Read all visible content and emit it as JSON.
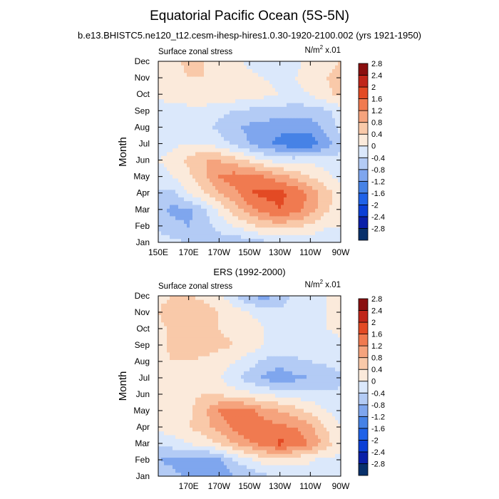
{
  "title": "Equatorial Pacific Ocean (5S-5N)",
  "subtitle": "b.e13.BHISTC5.ne120_t12.cesm-ihesp-hires1.0.30-1920-2100.002 (yrs 1921-1950)",
  "colors": [
    "#08306b",
    "#0a1fa8",
    "#0b3fd6",
    "#1f62e8",
    "#4682e6",
    "#7fa6ee",
    "#b3cbf5",
    "#dbe8fb",
    "#fbeadb",
    "#f9c9a9",
    "#f5a37d",
    "#f07a50",
    "#e34a24",
    "#c0261a",
    "#8a0f0f"
  ],
  "chart_data": [
    {
      "type": "heatmap",
      "title": "",
      "left_label": "Surface zonal stress",
      "right_label": "N/m",
      "right_label_sup": "2",
      "right_label_suffix": " x.01",
      "ylabel": "Month",
      "xlabel": "",
      "x_ticks": [
        "150E",
        "170E",
        "170W",
        "150W",
        "130W",
        "110W",
        "90W"
      ],
      "y_ticks": [
        "Jan",
        "Feb",
        "Mar",
        "Apr",
        "May",
        "Jun",
        "Jul",
        "Aug",
        "Sep",
        "Oct",
        "Nov",
        "Dec"
      ],
      "colorbar_levels": [
        "-2.8",
        "-2.4",
        "-2",
        "-1.6",
        "-1.2",
        "-0.8",
        "-0.4",
        "0",
        "0.4",
        "0.8",
        "1.2",
        "1.6",
        "2",
        "2.4",
        "2.8"
      ],
      "columns": [
        "150E",
        "160E",
        "170E",
        "180",
        "170W",
        "160W",
        "150W",
        "140W",
        "130W",
        "120W",
        "110W",
        "100W",
        "90W"
      ],
      "grid": [
        [
          -0.2,
          -0.3,
          -0.4,
          -0.5,
          -0.6,
          -0.7,
          -0.6,
          -0.5,
          -0.5,
          -0.4,
          -0.3,
          -0.2,
          -0.1
        ],
        [
          -0.5,
          -0.7,
          -0.8,
          -0.6,
          -0.3,
          0.0,
          0.3,
          0.5,
          0.6,
          0.5,
          0.3,
          0.0,
          0.0
        ],
        [
          -0.7,
          -0.9,
          -0.9,
          -0.5,
          0.1,
          0.6,
          1.0,
          1.4,
          1.6,
          1.4,
          1.0,
          0.5,
          0.1
        ],
        [
          -0.5,
          -0.5,
          0.0,
          0.4,
          0.8,
          1.1,
          1.6,
          1.7,
          1.7,
          1.5,
          1.1,
          0.6,
          0.2
        ],
        [
          -0.2,
          0.0,
          0.3,
          0.7,
          1.2,
          1.4,
          1.4,
          1.2,
          1.0,
          0.7,
          0.4,
          0.1,
          -0.1
        ],
        [
          0.0,
          0.2,
          0.5,
          0.8,
          0.8,
          0.6,
          0.3,
          0.0,
          -0.2,
          -0.2,
          -0.1,
          -0.2,
          -0.3
        ],
        [
          -0.2,
          -0.1,
          0.0,
          0.0,
          -0.2,
          -0.5,
          -0.8,
          -1.1,
          -1.3,
          -1.5,
          -1.5,
          -1.0,
          -0.5
        ],
        [
          -0.3,
          -0.3,
          -0.2,
          -0.3,
          -0.5,
          -0.7,
          -0.9,
          -1.0,
          -1.1,
          -1.1,
          -1.0,
          -0.7,
          -0.3
        ],
        [
          -0.4,
          -0.3,
          -0.2,
          -0.2,
          -0.3,
          -0.4,
          -0.5,
          -0.5,
          -0.6,
          -0.6,
          -0.6,
          -0.5,
          -0.2
        ],
        [
          0.2,
          0.3,
          0.4,
          0.4,
          0.3,
          0.3,
          0.2,
          0.1,
          0.0,
          -0.1,
          0.0,
          0.3,
          0.5
        ],
        [
          0.2,
          0.3,
          0.4,
          0.4,
          0.3,
          0.2,
          0.1,
          0.0,
          -0.1,
          0.0,
          0.2,
          0.4,
          0.5
        ],
        [
          0.0,
          0.3,
          0.5,
          0.4,
          0.3,
          0.1,
          -0.1,
          -0.2,
          -0.1,
          -0.1,
          0.1,
          0.3,
          0.4
        ]
      ]
    },
    {
      "type": "heatmap",
      "title": "ERS (1992-2000)",
      "left_label": "Surface zonal stress",
      "right_label": "N/m",
      "right_label_sup": "2",
      "right_label_suffix": " x.01",
      "ylabel": "Month",
      "xlabel": "",
      "x_ticks": [
        "",
        "170E",
        "170W",
        "150W",
        "130W",
        "110W",
        "90W"
      ],
      "y_ticks": [
        "Jan",
        "Feb",
        "Mar",
        "Apr",
        "May",
        "Jun",
        "Jul",
        "Aug",
        "Sep",
        "Oct",
        "Nov",
        "Dec"
      ],
      "colorbar_levels": [
        "-2.8",
        "-2.4",
        "-2",
        "-1.6",
        "-1.2",
        "-0.8",
        "-0.4",
        "0",
        "0.4",
        "0.8",
        "1.2",
        "1.6",
        "2",
        "2.4",
        "2.8"
      ],
      "columns": [
        "150E",
        "160E",
        "170E",
        "180",
        "170W",
        "160W",
        "150W",
        "140W",
        "130W",
        "120W",
        "110W",
        "100W",
        "90W"
      ],
      "grid": [
        [
          -0.6,
          -0.7,
          -0.9,
          -1.1,
          -1.2,
          -0.8,
          -0.7,
          -0.5,
          -0.3,
          -0.2,
          0.0,
          0.0,
          -0.1
        ],
        [
          -0.8,
          -0.9,
          -1.0,
          -1.1,
          -0.9,
          -0.4,
          -0.1,
          0.2,
          0.2,
          0.1,
          0.0,
          -0.1,
          -0.1
        ],
        [
          -0.3,
          -0.2,
          0.0,
          0.2,
          0.4,
          0.8,
          1.1,
          1.4,
          1.7,
          1.5,
          1.2,
          0.6,
          0.1
        ],
        [
          0.1,
          0.2,
          0.4,
          0.6,
          1.0,
          1.3,
          1.6,
          1.4,
          1.3,
          1.2,
          0.9,
          0.4,
          0.0
        ],
        [
          0.0,
          0.1,
          0.3,
          0.7,
          1.2,
          1.5,
          1.3,
          1.0,
          0.8,
          0.6,
          0.3,
          0.0,
          -0.2
        ],
        [
          0.1,
          0.2,
          0.3,
          0.4,
          0.4,
          0.2,
          0.1,
          0.0,
          -0.1,
          -0.2,
          -0.2,
          -0.3,
          -0.3
        ],
        [
          0.2,
          0.3,
          0.3,
          0.2,
          0.0,
          -0.3,
          -0.6,
          -0.9,
          -1.1,
          -0.9,
          -0.8,
          -0.8,
          -0.5
        ],
        [
          0.3,
          0.4,
          0.4,
          0.3,
          0.2,
          0.0,
          -0.2,
          -0.5,
          -0.6,
          -0.5,
          -0.4,
          -0.3,
          -0.2
        ],
        [
          0.3,
          0.5,
          0.6,
          0.6,
          0.5,
          0.4,
          0.2,
          0.0,
          -0.1,
          -0.1,
          -0.1,
          -0.2,
          -0.1
        ],
        [
          0.3,
          0.5,
          0.5,
          0.5,
          0.4,
          0.3,
          0.1,
          0.0,
          0.0,
          -0.2,
          -0.2,
          0.0,
          0.1
        ],
        [
          0.4,
          0.6,
          0.8,
          0.6,
          0.4,
          0.2,
          0.0,
          -0.1,
          -0.3,
          -0.3,
          -0.2,
          0.0,
          0.1
        ],
        [
          0.3,
          0.4,
          0.4,
          0.3,
          0.1,
          -0.3,
          -0.8,
          -1.0,
          -0.6,
          -0.3,
          -0.2,
          0.0,
          0.1
        ]
      ]
    }
  ]
}
